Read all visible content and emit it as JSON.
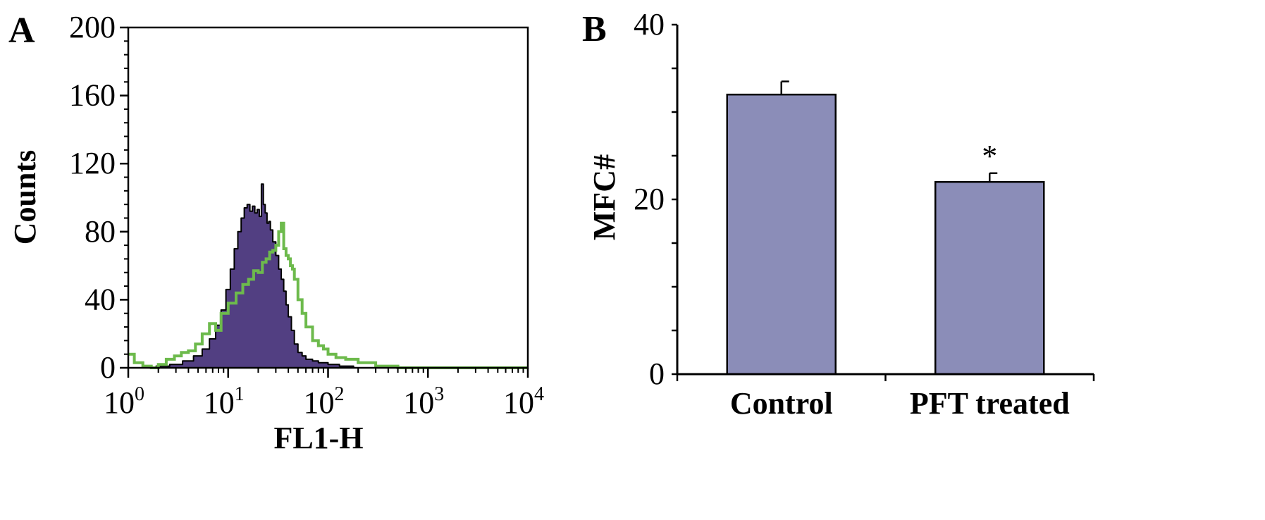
{
  "colors": {
    "axis": "#000000",
    "histogram_fill": "#523F82",
    "histogram_outline": "#000000",
    "histogram_overlay": "#6DBA4C",
    "bar_fill": "#8B8DB8",
    "bar_edge": "#000000"
  },
  "chart_data": [
    {
      "panel": "A",
      "type": "area",
      "x_scale": "log",
      "xlabel": "FL1-H",
      "ylabel": "Counts",
      "xlim": [
        1,
        10000
      ],
      "ylim": [
        0,
        200
      ],
      "x_ticks": [
        {
          "base": "10",
          "exp": "0",
          "value": 1
        },
        {
          "base": "10",
          "exp": "1",
          "value": 10
        },
        {
          "base": "10",
          "exp": "2",
          "value": 100
        },
        {
          "base": "10",
          "exp": "3",
          "value": 1000
        },
        {
          "base": "10",
          "exp": "4",
          "value": 10000
        }
      ],
      "y_ticks": [
        "0",
        "40",
        "80",
        "120",
        "160",
        "200"
      ],
      "grid": false,
      "series": [
        {
          "style": "filled",
          "x": [
            1.9,
            2.6,
            3.5,
            4.5,
            5.5,
            6.5,
            7.5,
            8.5,
            9.5,
            10.5,
            11.5,
            12.5,
            13.5,
            14.5,
            15.5,
            16.5,
            17.5,
            18.5,
            19.5,
            20.5,
            21.5,
            22.5,
            23.5,
            24.5,
            25.5,
            26.5,
            28,
            30,
            32,
            34,
            36,
            38,
            40,
            43,
            46,
            50,
            55,
            60,
            70,
            80,
            100,
            130,
            180
          ],
          "values": [
            1,
            2,
            4,
            7,
            11,
            17,
            25,
            34,
            46,
            58,
            70,
            80,
            88,
            94,
            96,
            92,
            95,
            91,
            93,
            89,
            108,
            96,
            91,
            85,
            86,
            81,
            74,
            66,
            58,
            52,
            45,
            37,
            30,
            22,
            14,
            9,
            7,
            5,
            4,
            3,
            2,
            1,
            0
          ]
        },
        {
          "style": "outline",
          "x": [
            1,
            1.15,
            1.4,
            1.7,
            2,
            2.4,
            2.9,
            3.4,
            4,
            4.7,
            5.5,
            6.5,
            7.5,
            8.5,
            10,
            12,
            14,
            16,
            18,
            20,
            22,
            24,
            26,
            28,
            30,
            32,
            34,
            36,
            38,
            40,
            42,
            44,
            46,
            50,
            55,
            60,
            70,
            80,
            90,
            100,
            120,
            150,
            200,
            300,
            500,
            1000,
            3000,
            10000
          ],
          "values": [
            8,
            3,
            1,
            0,
            2,
            5,
            7,
            9,
            10,
            14,
            20,
            26,
            22,
            32,
            38,
            44,
            49,
            52,
            57,
            56,
            62,
            64,
            68,
            69,
            72,
            80,
            85,
            70,
            66,
            64,
            60,
            58,
            52,
            40,
            32,
            24,
            16,
            13,
            11,
            8,
            6,
            5,
            3,
            1,
            0,
            0,
            0,
            0
          ]
        }
      ]
    },
    {
      "panel": "B",
      "type": "bar",
      "ylabel": "MFC#",
      "xlabel": "",
      "ylim": [
        0,
        40
      ],
      "y_ticks": [
        "0",
        "20",
        "40"
      ],
      "y_minor_step": 5,
      "grid": false,
      "categories": [
        "Control",
        "PFT treated"
      ],
      "values": [
        32,
        22
      ],
      "errors": [
        1.5,
        1
      ],
      "annotations": [
        "",
        "*"
      ]
    }
  ]
}
